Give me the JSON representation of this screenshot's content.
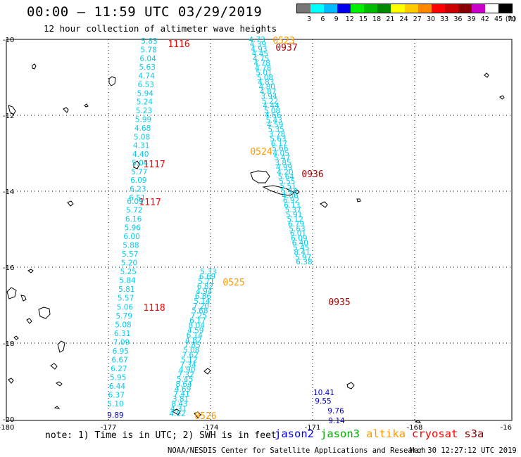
{
  "header": {
    "title": "00:00 – 11:59 UTC 03/29/2019",
    "subtitle": "12 hour collection of altimeter wave heights"
  },
  "color_scale": {
    "labels": [
      "3",
      "6",
      "9",
      "12",
      "15",
      "18",
      "21",
      "24",
      "27",
      "30",
      "33",
      "36",
      "39",
      "42",
      "45",
      "70",
      "(ft)"
    ],
    "colors": [
      "#777777",
      "#00ffff",
      "#00bbff",
      "#0000ee",
      "#00ee00",
      "#00bb00",
      "#008800",
      "#ffff00",
      "#ffcc00",
      "#ff8800",
      "#ff0000",
      "#cc0000",
      "#880000",
      "#cc00cc",
      "#ffffff",
      "#000000"
    ]
  },
  "map": {
    "lat_labels": [
      "-10",
      "-12",
      "-14",
      "-16",
      "-18",
      "-20"
    ],
    "lon_labels": [
      "-180",
      "-177",
      "-174",
      "-171",
      "-168",
      "-16"
    ],
    "colors": {
      "cyan": "#00ccee",
      "blue": "#0000cc",
      "red": "#ff0000",
      "darkred": "#aa0000",
      "orange": "#ff9900"
    },
    "passes": [
      {
        "id": "1116",
        "color": "#ff0000"
      },
      {
        "id": "1117",
        "color": "#ff0000"
      },
      {
        "id": "1117",
        "color": "#ff0000"
      },
      {
        "id": "1118",
        "color": "#ff0000"
      },
      {
        "id": "0523",
        "color": "#ff9900"
      },
      {
        "id": "0524",
        "color": "#ff9900"
      },
      {
        "id": "0525",
        "color": "#ff9900"
      },
      {
        "id": "0526",
        "color": "#ff9900"
      },
      {
        "id": "0937",
        "color": "#aa0000"
      },
      {
        "id": "0936",
        "color": "#aa0000"
      },
      {
        "id": "0935",
        "color": "#aa0000"
      }
    ],
    "tracks": [
      {
        "color": "#00ccee",
        "values": [
          "5.83",
          "5.78",
          "6.04",
          "5.63",
          "4.74",
          "6.53",
          "5.94",
          "5.24",
          "5.23",
          "5.99",
          "4.68",
          "5.08",
          "4.31",
          "4.40",
          "5.04",
          "5.77",
          "6.09",
          "6.23",
          "6.51"
        ]
      },
      {
        "color": "#00ccee",
        "values": [
          "6.09",
          "5.72",
          "6.16",
          "5.96",
          "6.00",
          "5.88",
          "5.57",
          "5.20",
          "5.25",
          "5.84",
          "5.81",
          "5.57",
          "5.06",
          "5.79",
          "5.08",
          "6.31",
          "7.09",
          "6.95",
          "6.67",
          "6.27",
          "5.95",
          "6.44",
          "6.37",
          "5.10"
        ]
      },
      {
        "color": "#00ccee",
        "values": [
          "4.73",
          "4.39",
          "4.93",
          "4.45",
          "4.75",
          "4.78",
          "4.78",
          "5.01",
          "5.08",
          "4.83",
          "4.80",
          "4.87",
          "3.94",
          "5.22",
          "4.44",
          "5.08",
          "4.66",
          "5.43",
          "4.59",
          "5.35",
          "3.78",
          "5.63",
          "6.17",
          "5.66",
          "4.05",
          "5.47",
          "3.85",
          "4.99",
          "4.20",
          "5.64",
          "5.55",
          "5.51",
          "5.44",
          "4.06",
          "6.92",
          "6.13",
          "5.37",
          "5.91",
          "5.12",
          "6.79",
          "5.63",
          "6.01",
          "6.09",
          "6.40",
          "5.45",
          "8.41",
          "5.97",
          "6.38"
        ]
      },
      {
        "color": "#00ccee",
        "values": [
          "5.33",
          "6.69",
          "5.71",
          "6.82",
          "4.94",
          "6.86",
          "5.14",
          "7.20",
          "5.68",
          "7.25",
          "6.17",
          "8.04",
          "4.59",
          "6.14",
          "4.82",
          "7.85",
          "5.08",
          "7.62",
          "5.12",
          "7.34",
          "4.90",
          "7.32",
          "5.45",
          "8.64",
          "4.69",
          "7.41",
          "3.81",
          "8.43",
          "4.31",
          "4.62"
        ]
      }
    ],
    "blue_values": [
      "9.89",
      "10.41",
      "9.55",
      "9.76",
      "9.14"
    ]
  },
  "footer": {
    "note": "note: 1) Time is in UTC; 2) SWH is in feet",
    "legend": [
      {
        "label": "jason2",
        "color": "#0000ee"
      },
      {
        "label": "jason3",
        "color": "#00aa00"
      },
      {
        "label": "altika",
        "color": "#ff9900"
      },
      {
        "label": "cryosat",
        "color": "#ff0000"
      },
      {
        "label": "s3a",
        "color": "#880000"
      }
    ],
    "credit": "NOAA/NESDIS Center for Satellite Applications and Research",
    "timestamp": "Mar 30 12:27:12 UTC 2019"
  }
}
